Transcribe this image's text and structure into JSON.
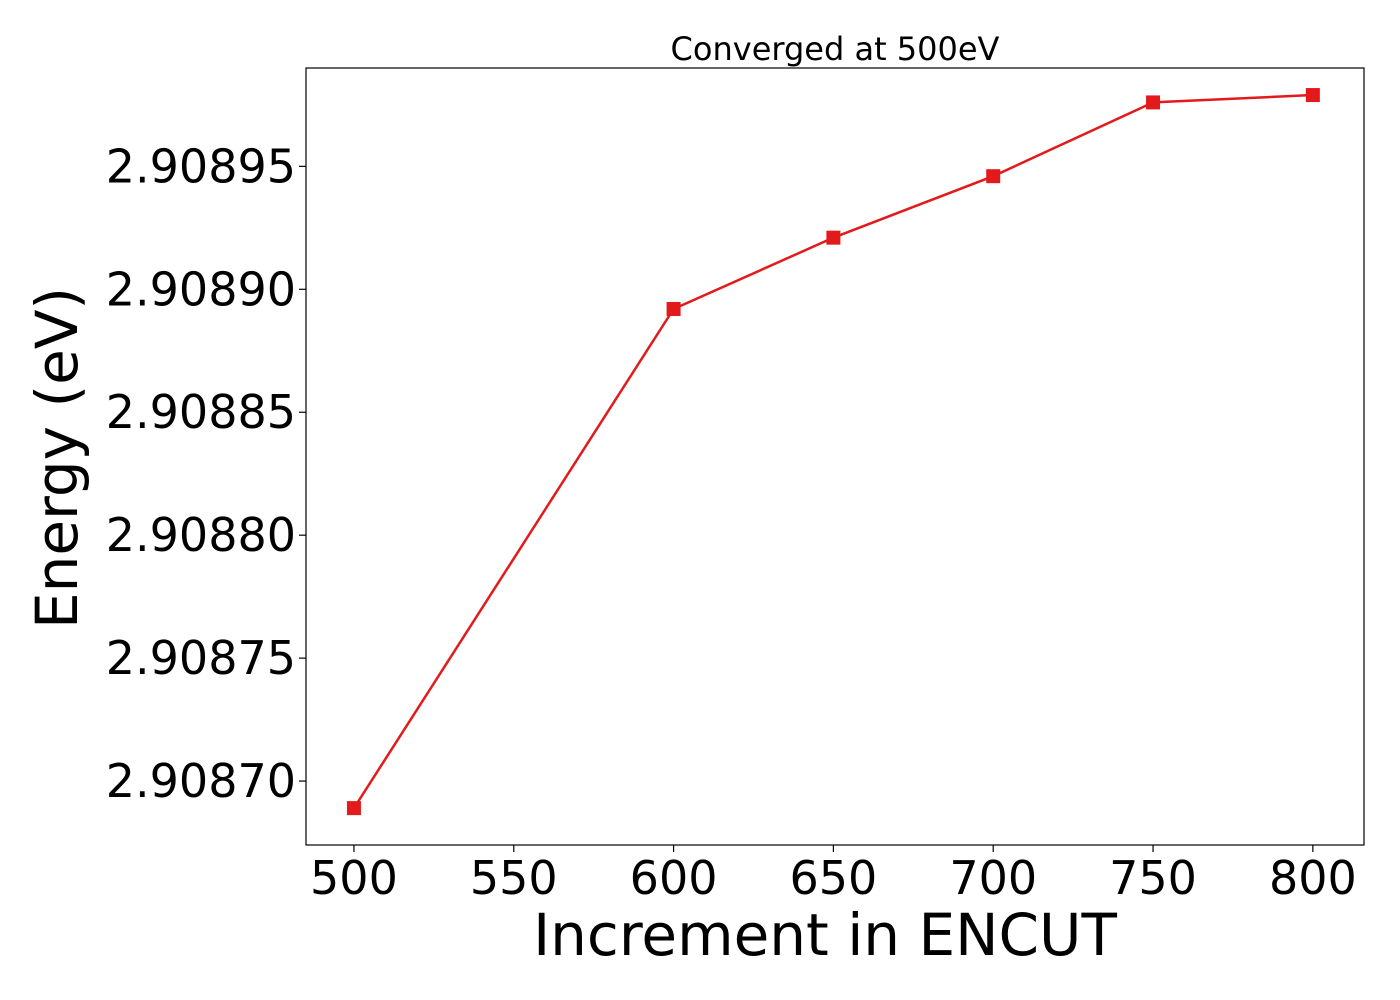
{
  "chart_data": {
    "type": "line",
    "title": "Converged at 500eV",
    "xlabel": "Increment in ENCUT",
    "ylabel": "Energy (eV)",
    "x": [
      500,
      600,
      650,
      700,
      750,
      800
    ],
    "series": [
      {
        "values": [
          2.908689,
          2.908892,
          2.908921,
          2.908946,
          2.908976,
          2.908979
        ],
        "color": "#e31a1c",
        "marker": "square"
      }
    ],
    "xlim": [
      485,
      816
    ],
    "ylim": [
      2.908674,
      2.90899
    ],
    "xticks": [
      500,
      550,
      600,
      650,
      700,
      750,
      800
    ],
    "xtick_labels": [
      "500",
      "550",
      "600",
      "650",
      "700",
      "750",
      "800"
    ],
    "yticks": [
      2.9087,
      2.90875,
      2.9088,
      2.90885,
      2.9089,
      2.90895
    ],
    "ytick_labels": [
      "2.90870",
      "2.90875",
      "2.90880",
      "2.90885",
      "2.90890",
      "2.90895"
    ],
    "grid": false,
    "legend": "none"
  }
}
